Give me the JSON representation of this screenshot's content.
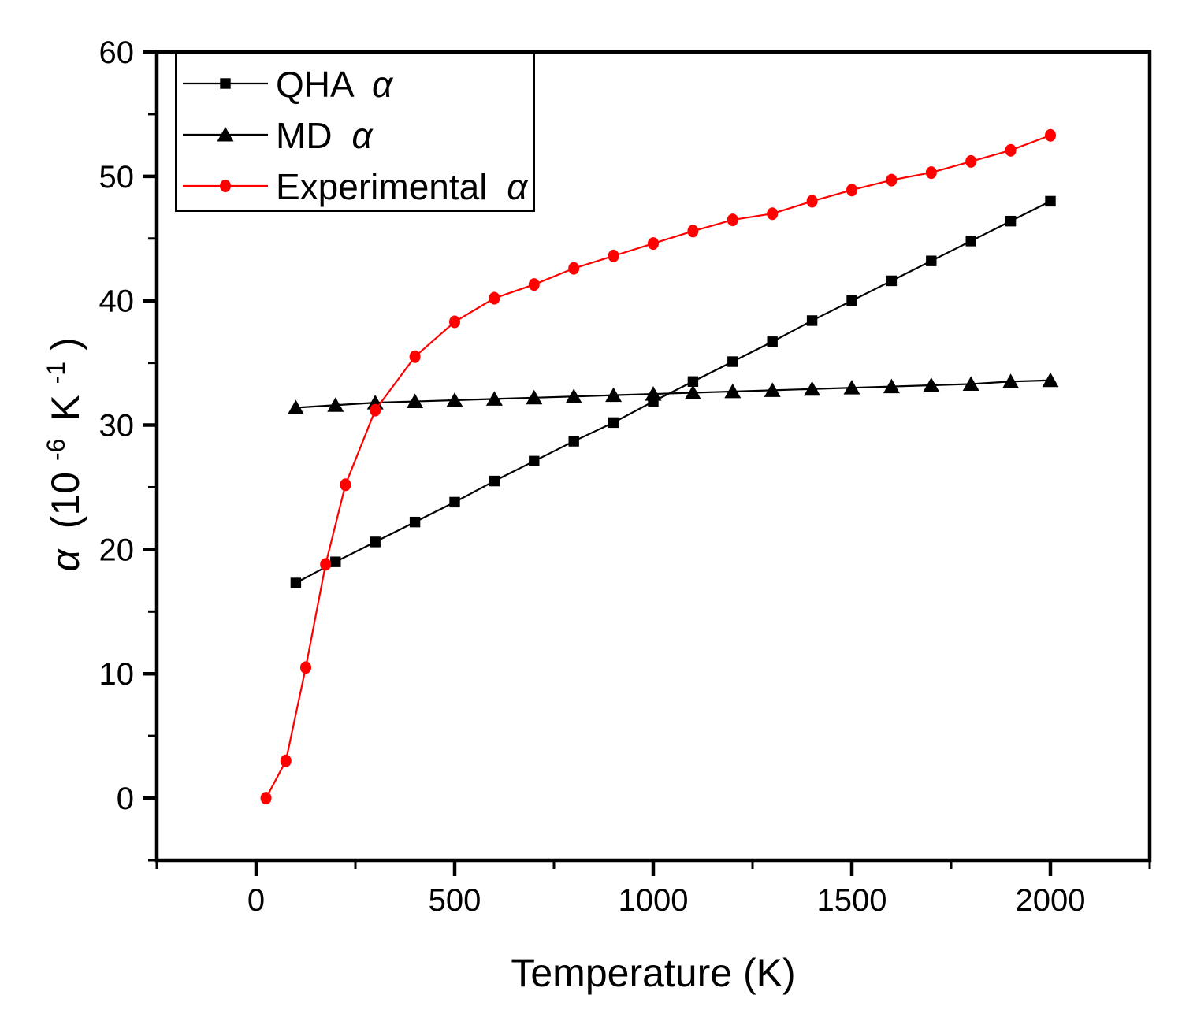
{
  "figure": {
    "background": "#FFFFFF",
    "axis_color": "#000000"
  },
  "chart_data": {
    "type": "line",
    "title": "",
    "xlabel": "Temperature (K)",
    "ylabel": "α (10⁻⁶ K⁻¹)",
    "ylabel_parts": {
      "alpha": "α",
      "open": "(10",
      "sup1": "-6",
      "unit": "K",
      "sup2": "-1",
      "close": ")"
    },
    "xlim": [
      -250,
      2250
    ],
    "ylim": [
      -5,
      60
    ],
    "x_major_ticks": [
      0,
      500,
      1000,
      1500,
      2000
    ],
    "x_minor_tick_step": 250,
    "y_major_ticks": [
      0,
      10,
      20,
      30,
      40,
      50,
      60
    ],
    "y_minor_tick_step": 5,
    "grid": false,
    "legend": {
      "position": "top-left",
      "entries": [
        {
          "label": "QHA",
          "alpha": "α",
          "marker": "square",
          "color": "#000000"
        },
        {
          "label": "MD",
          "alpha": "α",
          "marker": "triangle-up",
          "color": "#000000"
        },
        {
          "label": "Experimental",
          "alpha": "α",
          "marker": "circle",
          "color": "#FF0000"
        }
      ]
    },
    "series": [
      {
        "id": "qha",
        "name": "QHA α",
        "marker": "square",
        "color": "#000000",
        "x": [
          100,
          200,
          300,
          400,
          500,
          600,
          700,
          800,
          900,
          1000,
          1100,
          1200,
          1300,
          1400,
          1500,
          1600,
          1700,
          1800,
          1900,
          2000
        ],
        "y": [
          17.3,
          19.0,
          20.6,
          22.2,
          23.8,
          25.5,
          27.1,
          28.7,
          30.2,
          31.9,
          33.5,
          35.1,
          36.7,
          38.4,
          40.0,
          41.6,
          43.2,
          44.8,
          46.4,
          48.0
        ]
      },
      {
        "id": "md",
        "name": "MD α",
        "marker": "triangle-up",
        "color": "#000000",
        "x": [
          100,
          200,
          300,
          400,
          500,
          600,
          700,
          800,
          900,
          1000,
          1100,
          1200,
          1300,
          1400,
          1500,
          1600,
          1700,
          1800,
          1900,
          2000
        ],
        "y": [
          31.4,
          31.6,
          31.8,
          31.9,
          32.0,
          32.1,
          32.2,
          32.3,
          32.4,
          32.5,
          32.6,
          32.7,
          32.8,
          32.9,
          33.0,
          33.1,
          33.2,
          33.3,
          33.5,
          33.6
        ]
      },
      {
        "id": "experimental",
        "name": "Experimental α",
        "marker": "circle",
        "color": "#FF0000",
        "x": [
          25,
          75,
          125,
          175,
          225,
          300,
          400,
          500,
          600,
          700,
          800,
          900,
          1000,
          1100,
          1200,
          1300,
          1400,
          1500,
          1600,
          1700,
          1800,
          1900,
          2000
        ],
        "y": [
          0.0,
          3.0,
          10.5,
          18.8,
          25.2,
          31.2,
          35.5,
          38.3,
          40.2,
          41.3,
          42.6,
          43.6,
          44.6,
          45.6,
          46.5,
          47.0,
          48.0,
          48.9,
          49.7,
          50.3,
          51.2,
          52.1,
          53.3
        ]
      }
    ]
  }
}
